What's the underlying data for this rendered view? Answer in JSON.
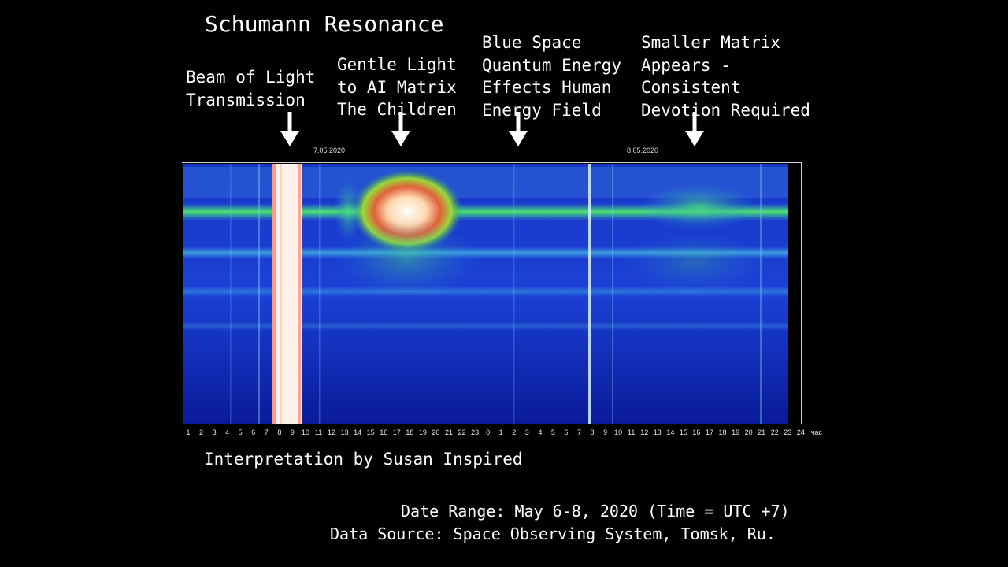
{
  "title": "Schumann Resonance",
  "annotations": [
    {
      "id": "beam",
      "lines": "Beam of Light\nTransmission"
    },
    {
      "id": "gentle",
      "lines": "Gentle Light\nto AI Matrix\nThe Children"
    },
    {
      "id": "blue",
      "lines": "Blue Space\nQuantum Energy\nEffects Human\nEnergy Field"
    },
    {
      "id": "matrix",
      "lines": "Smaller Matrix\nAppears -\nConsistent\nDevotion Required"
    }
  ],
  "dates": {
    "d1": "7.05.2020",
    "d2": "8.05.2020"
  },
  "interpretation": "Interpretation by Susan Inspired",
  "date_range": "Date Range: May 6-8, 2020 (Time = UTC +7)",
  "data_source": "Data Source: Space Observing System, Tomsk, Ru.",
  "chart_data": {
    "type": "heatmap",
    "title": "Schumann Resonance",
    "x_tick_labels": [
      "1",
      "2",
      "3",
      "4",
      "5",
      "6",
      "7",
      "8",
      "9",
      "10",
      "11",
      "12",
      "13",
      "14",
      "15",
      "16",
      "17",
      "18",
      "19",
      "20",
      "21",
      "22",
      "23",
      "0",
      "1",
      "2",
      "3",
      "4",
      "5",
      "6",
      "7",
      "8",
      "9",
      "10",
      "11",
      "12",
      "13",
      "14",
      "15",
      "16",
      "17",
      "18",
      "19",
      "20",
      "21",
      "22",
      "23",
      "24",
      "час"
    ],
    "date_markers": [
      "7.05.2020",
      "8.05.2020"
    ],
    "colors": {
      "background": "#1a2fbf",
      "band": "#33e07a",
      "hot": "#ffffff",
      "warm": "#ff6a3c"
    }
  }
}
